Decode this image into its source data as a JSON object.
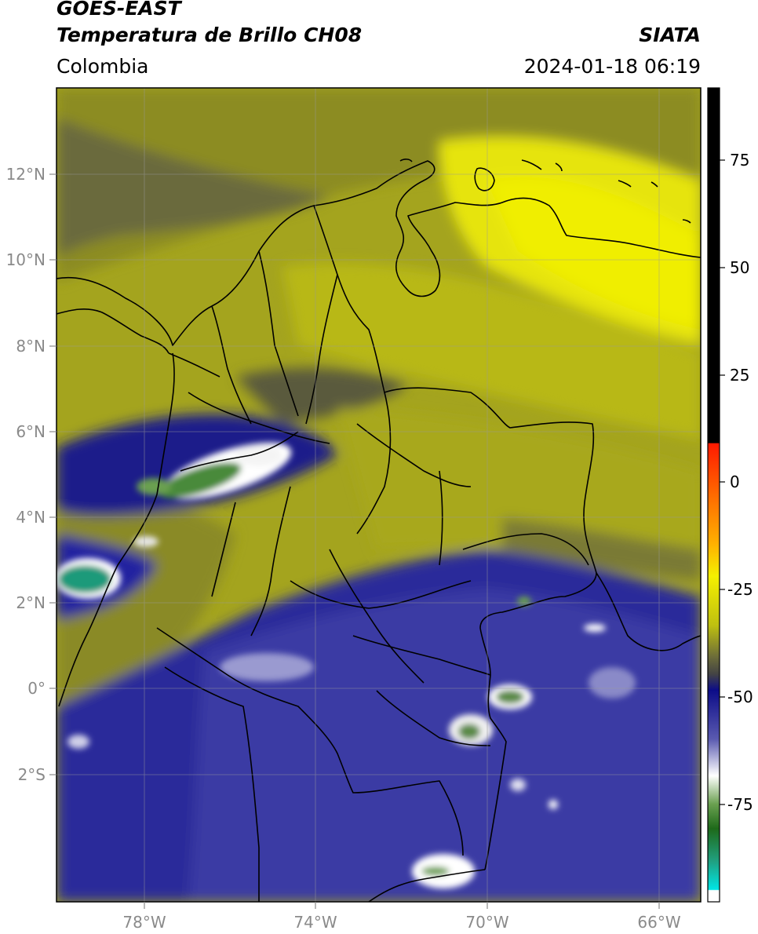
{
  "header": {
    "satellite": "GOES-EAST",
    "product": "Temperatura de Brillo CH08",
    "region": "Colombia",
    "institution": "SIATA",
    "datetime": "2024-01-18 06:19"
  },
  "map": {
    "lat_ticks": [
      "12°N",
      "10°N",
      "8°N",
      "6°N",
      "4°N",
      "2°N",
      "0°",
      "2°S"
    ],
    "lon_ticks": [
      "78°W",
      "74°W",
      "70°W",
      "66°W"
    ],
    "extent": {
      "lon_min": -80.05,
      "lon_max": -65.0,
      "lat_min": -5.0,
      "lat_max": 14.0
    },
    "gridlines": true
  },
  "colorbar": {
    "labels": [
      "75",
      "50",
      "25",
      "0",
      "-25",
      "-50",
      "-75"
    ],
    "colors": {
      "hot": "#000000",
      "red": "#ff1a00",
      "orange": "#ff9900",
      "yellow": "#f5f000",
      "olive": "#8a8a2a",
      "navy": "#14148a",
      "white": "#ffffff",
      "green": "#2e7d22",
      "cyan": "#00e5e5"
    }
  }
}
